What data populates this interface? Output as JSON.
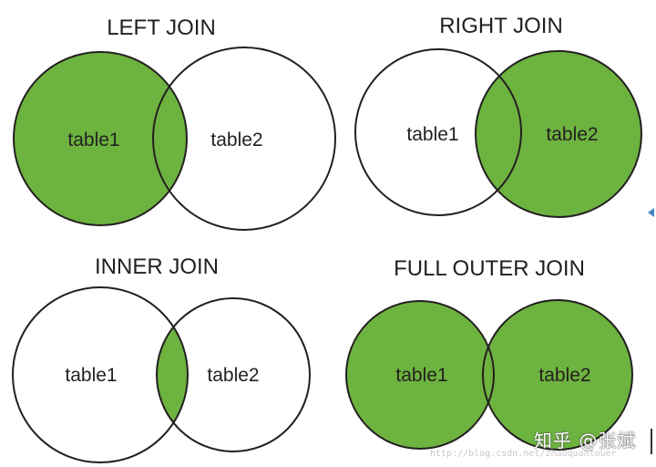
{
  "colors": {
    "fill": "#6db33f",
    "stroke": "#231f20",
    "background": "#ffffff"
  },
  "diagrams": {
    "left_join": {
      "title": "LEFT JOIN",
      "left_label": "table1",
      "right_label": "table2",
      "highlight": "left"
    },
    "right_join": {
      "title": "RIGHT JOIN",
      "left_label": "table1",
      "right_label": "table2",
      "highlight": "right"
    },
    "inner_join": {
      "title": "INNER JOIN",
      "left_label": "table1",
      "right_label": "table2",
      "highlight": "intersection"
    },
    "full_outer": {
      "title": "FULL OUTER JOIN",
      "left_label": "table1",
      "right_label": "table2",
      "highlight": "both"
    }
  },
  "watermark": {
    "text": "知乎 @张斌",
    "url": "http://blog.csdn.net/zhaoquantouer"
  }
}
